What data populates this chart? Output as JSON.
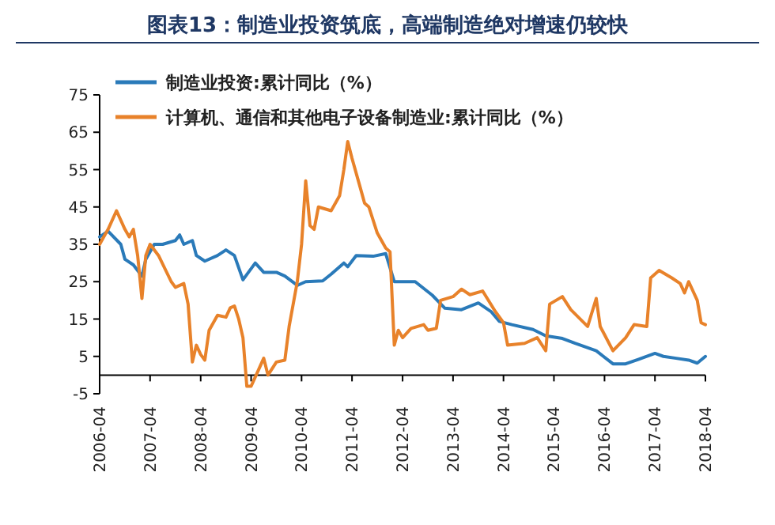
{
  "chart_data": {
    "type": "line",
    "title": "图表13：制造业投资筑底，高端制造绝对增速仍较快",
    "xlim": [
      "2006-04",
      "2018-04"
    ],
    "xticks": [
      "2006-04",
      "2007-04",
      "2008-04",
      "2009-04",
      "2010-04",
      "2011-04",
      "2012-04",
      "2013-04",
      "2014-04",
      "2015-04",
      "2016-04",
      "2017-04",
      "2018-04"
    ],
    "ylim": [
      -5,
      75
    ],
    "yticks": [
      -5,
      5,
      15,
      25,
      35,
      45,
      55,
      65,
      75
    ],
    "grid": false,
    "legend": "top left",
    "marker": "none",
    "line_style": "solid",
    "series": [
      {
        "name": "制造业投资:累计同比（%）",
        "color": "#2a7ab9",
        "x": [
          "2006-04",
          "2006-06",
          "2006-09",
          "2006-10",
          "2006-12",
          "2007-02",
          "2007-03",
          "2007-05",
          "2007-07",
          "2007-10",
          "2007-11",
          "2007-12",
          "2008-02",
          "2008-03",
          "2008-05",
          "2008-08",
          "2008-10",
          "2008-12",
          "2009-02",
          "2009-05",
          "2009-07",
          "2009-10",
          "2009-12",
          "2010-03",
          "2010-05",
          "2010-09",
          "2010-11",
          "2011-02",
          "2011-03",
          "2011-05",
          "2011-09",
          "2011-12",
          "2012-02",
          "2012-07",
          "2012-11",
          "2013-02",
          "2013-06",
          "2013-10",
          "2014-01",
          "2014-03",
          "2014-06",
          "2014-11",
          "2015-02",
          "2015-06",
          "2015-09",
          "2016-02",
          "2016-06",
          "2016-09",
          "2016-12",
          "2017-04",
          "2017-06",
          "2017-09",
          "2017-12",
          "2018-02",
          "2018-04"
        ],
        "values": [
          37,
          38.5,
          35,
          31,
          29.5,
          26.5,
          31,
          35,
          35,
          36,
          37.5,
          35,
          36,
          32,
          30.5,
          32,
          33.5,
          32,
          25.5,
          30,
          27.5,
          27.5,
          26.5,
          24,
          25,
          25.2,
          27,
          30,
          29,
          32,
          31.8,
          32.5,
          25,
          25,
          21.4,
          17.9,
          17.5,
          19.3,
          17,
          14.4,
          13.5,
          12.2,
          10.5,
          9.8,
          8.5,
          6.5,
          3,
          3,
          4.2,
          5.8,
          5,
          4.5,
          4,
          3.2,
          5
        ]
      },
      {
        "name": "计算机、通信和其他电子设备制造业:累计同比（%）",
        "color": "#e8822a",
        "x": [
          "2006-04",
          "2006-05",
          "2006-06",
          "2006-08",
          "2006-10",
          "2006-11",
          "2006-12",
          "2007-01",
          "2007-02",
          "2007-03",
          "2007-04",
          "2007-06",
          "2007-09",
          "2007-10",
          "2007-12",
          "2008-01",
          "2008-02",
          "2008-03",
          "2008-04",
          "2008-05",
          "2008-06",
          "2008-08",
          "2008-10",
          "2008-11",
          "2008-12",
          "2009-01",
          "2009-02",
          "2009-03",
          "2009-04",
          "2009-06",
          "2009-07",
          "2009-08",
          "2009-10",
          "2009-12",
          "2010-01",
          "2010-03",
          "2010-04",
          "2010-05",
          "2010-06",
          "2010-07",
          "2010-08",
          "2010-11",
          "2011-01",
          "2011-02",
          "2011-03",
          "2011-04",
          "2011-06",
          "2011-07",
          "2011-08",
          "2011-10",
          "2011-12",
          "2012-01",
          "2012-02",
          "2012-03",
          "2012-04",
          "2012-06",
          "2012-09",
          "2012-10",
          "2012-12",
          "2013-01",
          "2013-04",
          "2013-06",
          "2013-08",
          "2013-11",
          "2014-02",
          "2014-04",
          "2014-05",
          "2014-09",
          "2014-12",
          "2015-02",
          "2015-03",
          "2015-06",
          "2015-08",
          "2015-12",
          "2016-02",
          "2016-03",
          "2016-06",
          "2016-09",
          "2016-11",
          "2017-02",
          "2017-03",
          "2017-05",
          "2017-08",
          "2017-10",
          "2017-11",
          "2017-12",
          "2018-02",
          "2018-03",
          "2018-04"
        ],
        "values": [
          35,
          37,
          39,
          44,
          39,
          37,
          39,
          32,
          20.5,
          32,
          35,
          32,
          25,
          23.5,
          24.5,
          19,
          3.5,
          8,
          5.5,
          4,
          12,
          16,
          15.5,
          18,
          18.5,
          15,
          10,
          -3,
          -3,
          2,
          4.5,
          0,
          3.5,
          4,
          13,
          25,
          35,
          52,
          40,
          39,
          45,
          44,
          48,
          55,
          62.5,
          58,
          50,
          46,
          45,
          38,
          34,
          33,
          8,
          12,
          10,
          12.5,
          13.5,
          12,
          12.5,
          20,
          21,
          23,
          21.5,
          22.5,
          17,
          14,
          8,
          8.5,
          10,
          6.5,
          19,
          21,
          17.5,
          13,
          20.5,
          13,
          6.5,
          10,
          13.5,
          13,
          26,
          28,
          26,
          24.5,
          22,
          25,
          20,
          14,
          13.5
        ]
      }
    ]
  }
}
